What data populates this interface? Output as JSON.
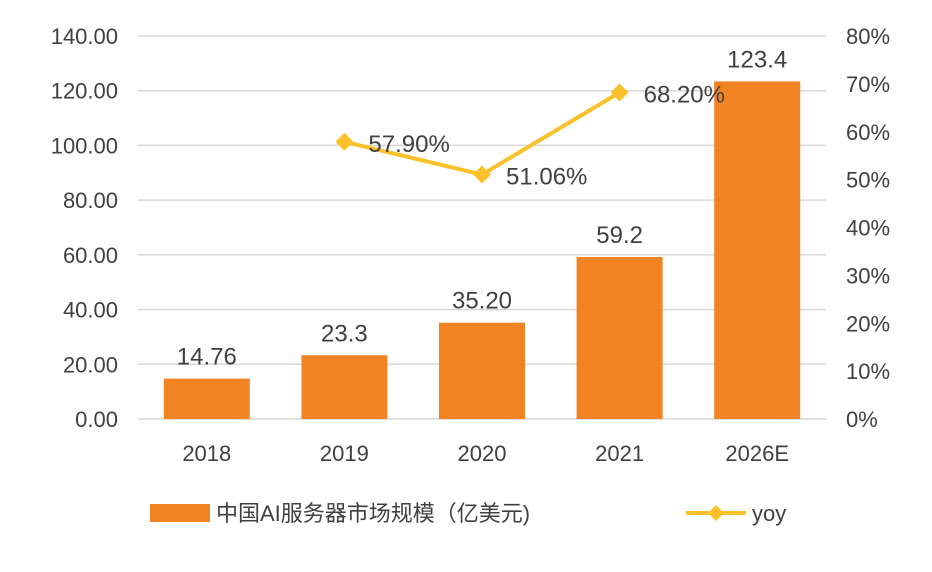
{
  "chart_data": {
    "type": "bar",
    "categories": [
      "2018",
      "2019",
      "2020",
      "2021",
      "2026E"
    ],
    "series": [
      {
        "name": "中国AI服务器市场规模（亿美元)",
        "type": "bar",
        "axis": "left",
        "values": [
          14.76,
          23.3,
          35.2,
          59.2,
          123.4
        ],
        "labels": [
          "14.76",
          "23.3",
          "35.20",
          "59.2",
          "123.4"
        ],
        "color": "#F28322"
      },
      {
        "name": "yoy",
        "type": "line",
        "axis": "right",
        "values": [
          null,
          57.9,
          51.06,
          68.2,
          null
        ],
        "labels": [
          "",
          "57.90%",
          "51.06%",
          "68.20%",
          ""
        ],
        "color": "#FAC12A"
      }
    ],
    "y_left": {
      "range": [
        0,
        140
      ],
      "ticks": [
        "0.00",
        "20.00",
        "40.00",
        "60.00",
        "80.00",
        "100.00",
        "120.00",
        "140.00"
      ]
    },
    "y_right": {
      "range": [
        0,
        80
      ],
      "ticks": [
        "0%",
        "10%",
        "20%",
        "30%",
        "40%",
        "50%",
        "60%",
        "70%",
        "80%"
      ]
    },
    "grid": true,
    "legend_position": "bottom"
  }
}
